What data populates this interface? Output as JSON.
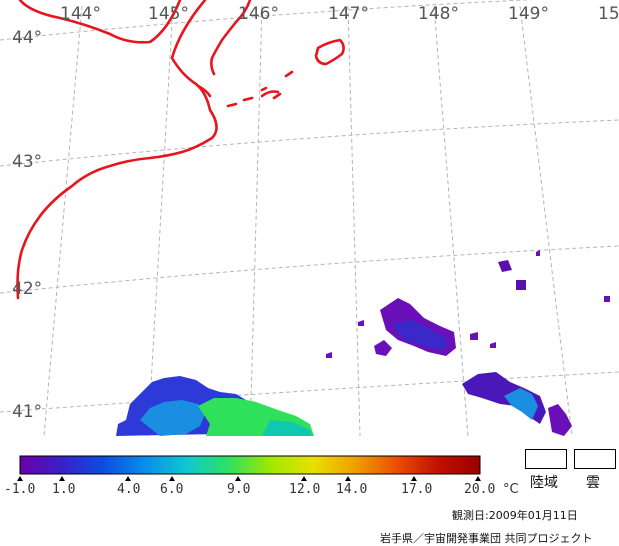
{
  "map": {
    "lon_labels": [
      "144°",
      "145°",
      "146°",
      "147°",
      "148°",
      "149°",
      "15"
    ],
    "lat_labels": [
      "44°",
      "43°",
      "42°",
      "41°"
    ]
  },
  "colorbar": {
    "ticks": [
      "-1.0",
      "1.0",
      "4.0",
      "6.0",
      "9.0",
      "12.0",
      "14.0",
      "17.0",
      "20.0"
    ],
    "unit": "°C",
    "colors": [
      "#6a00a8",
      "#3a20c8",
      "#0a4ee0",
      "#0a8ee8",
      "#10c8d0",
      "#30e060",
      "#a0e800",
      "#e8e000",
      "#f0a000",
      "#e85000",
      "#c01000",
      "#9a0000"
    ]
  },
  "legend": {
    "land_label": "陸域",
    "cloud_label": "雲"
  },
  "footer": {
    "observation_date": "観測日:2009年01月11日",
    "credit": "岩手県／宇宙開発事業団 共同プロジェクト"
  },
  "colors": {
    "coastline": "#e8141e",
    "grid": "#b4b4b4"
  }
}
